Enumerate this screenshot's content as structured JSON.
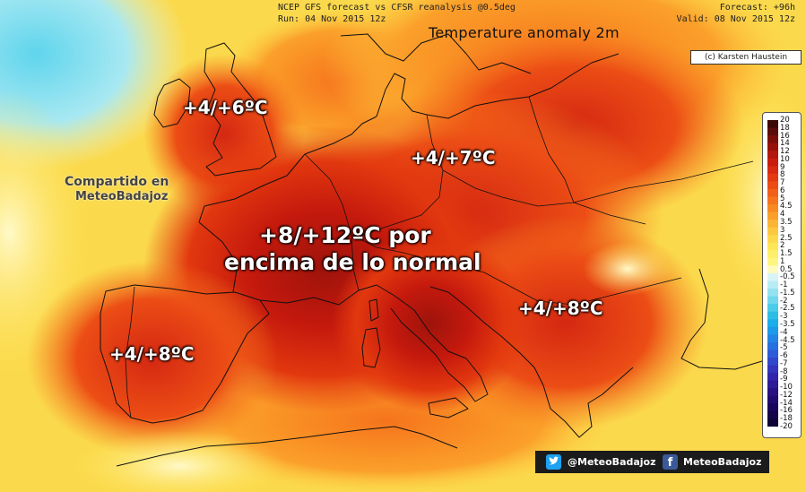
{
  "header": {
    "source": "NCEP GFS forecast vs CFSR reanalysis @0.5deg",
    "run": "Run: 04 Nov 2015 12z",
    "forecast": "Forecast: +96h",
    "valid": "Valid: 08 Nov 2015 12z"
  },
  "title": "Temperature anomaly 2m",
  "credit": "(c) Karsten Haustein",
  "annotations": {
    "uk": "+4/+6ºC",
    "germany": "+4/+7ºC",
    "france_line1": "+8/+12ºC por",
    "france_line2": "encima de lo normal",
    "balkans": "+4/+8ºC",
    "iberia": "+4/+8ºC"
  },
  "shared": {
    "line1": "Compartido en",
    "line2": "MeteoBadajoz"
  },
  "colorbar": {
    "ticks": [
      "20",
      "18",
      "16",
      "14",
      "12",
      "10",
      "9",
      "8",
      "7",
      "6",
      "5",
      "4.5",
      "4",
      "3.5",
      "3",
      "2.5",
      "2",
      "1.5",
      "1",
      "0.5",
      "-0.5",
      "-1",
      "-1.5",
      "-2",
      "-2.5",
      "-3",
      "-3.5",
      "-4",
      "-4.5",
      "-5",
      "-6",
      "-7",
      "-8",
      "-9",
      "-10",
      "-12",
      "-14",
      "-16",
      "-18",
      "-20"
    ],
    "colors": [
      "#3b0a06",
      "#5a0d08",
      "#7a0f0a",
      "#96120b",
      "#b3160c",
      "#c81d0e",
      "#d82a10",
      "#e33a12",
      "#ec4d15",
      "#f25f18",
      "#f6741c",
      "#f98a22",
      "#fb9f2a",
      "#fcb434",
      "#fdc73f",
      "#fdd84b",
      "#fde658",
      "#feef6a",
      "#fef680",
      "#fffac0",
      "#d8f4f7",
      "#b8ecf4",
      "#94e2f1",
      "#70d7ee",
      "#4ccbea",
      "#2fbde6",
      "#1cadeb",
      "#1d9ae9",
      "#2285e6",
      "#286fe0",
      "#2d5cd8",
      "#3048cc",
      "#3236bd",
      "#3126aa",
      "#2d1a96",
      "#281181",
      "#210b6d",
      "#1a065a",
      "#140448",
      "#0e0236"
    ]
  },
  "social": {
    "twitter_icon": "twitter-icon",
    "twitter": "@MeteoBadajoz",
    "facebook_icon": "facebook-icon",
    "facebook_glyph": "f",
    "facebook": "MeteoBadajoz"
  }
}
